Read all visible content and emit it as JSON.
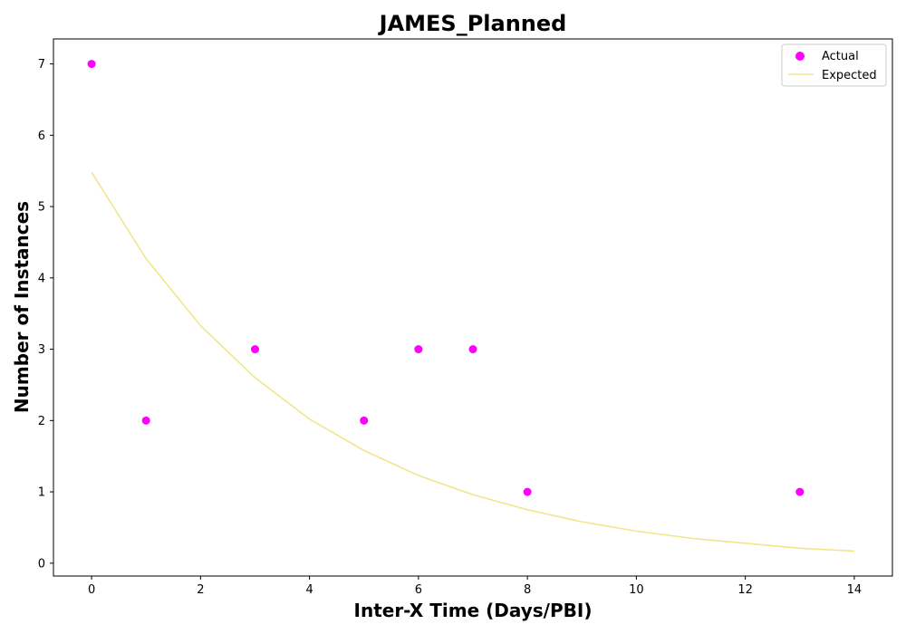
{
  "chart_data": {
    "type": "scatter",
    "title": "JAMES_Planned",
    "xlabel": "Inter-X Time (Days/PBI)",
    "ylabel": "Number of Instances",
    "xlim": [
      -0.7,
      14.7
    ],
    "ylim": [
      -0.18,
      7.35
    ],
    "xticks": [
      0,
      2,
      4,
      6,
      8,
      10,
      12,
      14
    ],
    "yticks": [
      0,
      1,
      2,
      3,
      4,
      5,
      6,
      7
    ],
    "grid": false,
    "legend_position": "top-right",
    "series": [
      {
        "name": "Actual",
        "kind": "scatter",
        "color": "#ff00ff",
        "points": [
          {
            "x": 0,
            "y": 7
          },
          {
            "x": 1,
            "y": 2
          },
          {
            "x": 3,
            "y": 3
          },
          {
            "x": 5,
            "y": 2
          },
          {
            "x": 6,
            "y": 3
          },
          {
            "x": 7,
            "y": 3
          },
          {
            "x": 8,
            "y": 1
          },
          {
            "x": 13,
            "y": 1
          }
        ]
      },
      {
        "name": "Expected",
        "kind": "line",
        "color": "#f0e68c",
        "points": [
          {
            "x": 0,
            "y": 5.48
          },
          {
            "x": 1,
            "y": 4.27
          },
          {
            "x": 2,
            "y": 3.33
          },
          {
            "x": 3,
            "y": 2.6
          },
          {
            "x": 4,
            "y": 2.02
          },
          {
            "x": 5,
            "y": 1.58
          },
          {
            "x": 6,
            "y": 1.23
          },
          {
            "x": 7,
            "y": 0.96
          },
          {
            "x": 8,
            "y": 0.75
          },
          {
            "x": 9,
            "y": 0.58
          },
          {
            "x": 10,
            "y": 0.45
          },
          {
            "x": 11,
            "y": 0.35
          },
          {
            "x": 12,
            "y": 0.28
          },
          {
            "x": 13,
            "y": 0.21
          },
          {
            "x": 14,
            "y": 0.17
          }
        ]
      }
    ]
  }
}
